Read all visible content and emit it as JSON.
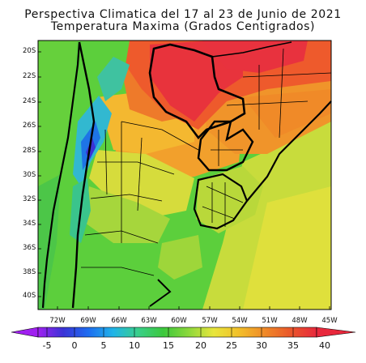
{
  "title": {
    "line1": "Perspectiva Climatica del 17 al 23 de Junio de 2021",
    "line2": "Temperatura Maxima (Grados Centigrados)"
  },
  "chart_data": {
    "type": "heatmap",
    "title": "Perspectiva Climatica del 17 al 23 de Junio de 2021 / Temperatura Maxima (Grados Centigrados)",
    "lat_ticks": [
      "20S",
      "22S",
      "24S",
      "26S",
      "28S",
      "30S",
      "32S",
      "34S",
      "36S",
      "38S",
      "40S"
    ],
    "lon_ticks": [
      "72W",
      "69W",
      "66W",
      "63W",
      "60W",
      "57W",
      "54W",
      "51W",
      "48W",
      "45W"
    ],
    "colorbar": {
      "labels": [
        "-5",
        "0",
        "5",
        "10",
        "15",
        "20",
        "25",
        "30",
        "35",
        "40"
      ],
      "colors": [
        "#a020f0",
        "#3a33d6",
        "#1e6cf0",
        "#20b4e8",
        "#3acf8a",
        "#3cc83c",
        "#8cd83c",
        "#e8e63c",
        "#f2c02a",
        "#f08c28",
        "#ea5a2a",
        "#e8283c"
      ]
    },
    "regions_celsius": {
      "Bolivian Chaco / northern Paraguay": 38,
      "Southern Brazil interior": 37,
      "Argentine northeast": 33,
      "Uruguay": 22,
      "Central Argentina": 19,
      "Patagonia north": 17,
      "Andes high terrain": 5
    }
  }
}
